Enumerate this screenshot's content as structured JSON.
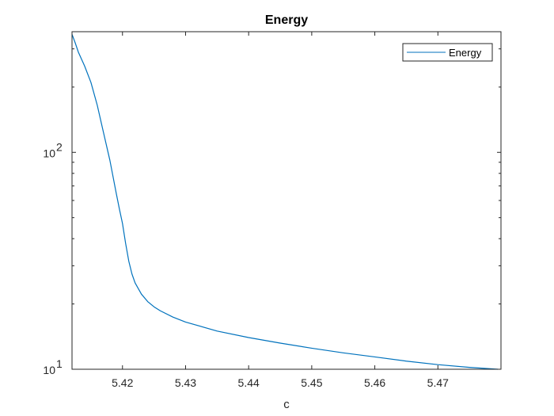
{
  "chart_data": {
    "type": "line",
    "title": "Energy",
    "xlabel": "c",
    "ylabel": "",
    "xlim": [
      5.412,
      5.48
    ],
    "ylim": [
      10,
      360
    ],
    "yscale": "log",
    "grid": false,
    "legend_position": "top-right",
    "x_ticks": [
      5.42,
      5.43,
      5.44,
      5.45,
      5.46,
      5.47
    ],
    "x_tick_labels": [
      "5.42",
      "5.43",
      "5.44",
      "5.45",
      "5.46",
      "5.47"
    ],
    "y_ticks": [
      {
        "value": 10,
        "base": "10",
        "exp": "1"
      },
      {
        "value": 100,
        "base": "10",
        "exp": "2"
      }
    ],
    "series": [
      {
        "name": "Energy",
        "color": "#0072BD",
        "x": [
          5.412,
          5.4125,
          5.413,
          5.414,
          5.415,
          5.416,
          5.417,
          5.418,
          5.419,
          5.4195,
          5.42,
          5.4205,
          5.421,
          5.4215,
          5.422,
          5.423,
          5.424,
          5.425,
          5.426,
          5.428,
          5.43,
          5.435,
          5.44,
          5.445,
          5.45,
          5.455,
          5.46,
          5.465,
          5.47,
          5.475,
          5.4795
        ],
        "y": [
          350,
          320,
          290,
          250,
          210,
          165,
          123,
          92,
          65,
          55,
          47,
          38,
          31.5,
          27.5,
          25,
          22.2,
          20.5,
          19.4,
          18.6,
          17.4,
          16.5,
          15,
          14,
          13.2,
          12.5,
          11.9,
          11.4,
          10.9,
          10.5,
          10.2,
          10
        ]
      }
    ]
  }
}
